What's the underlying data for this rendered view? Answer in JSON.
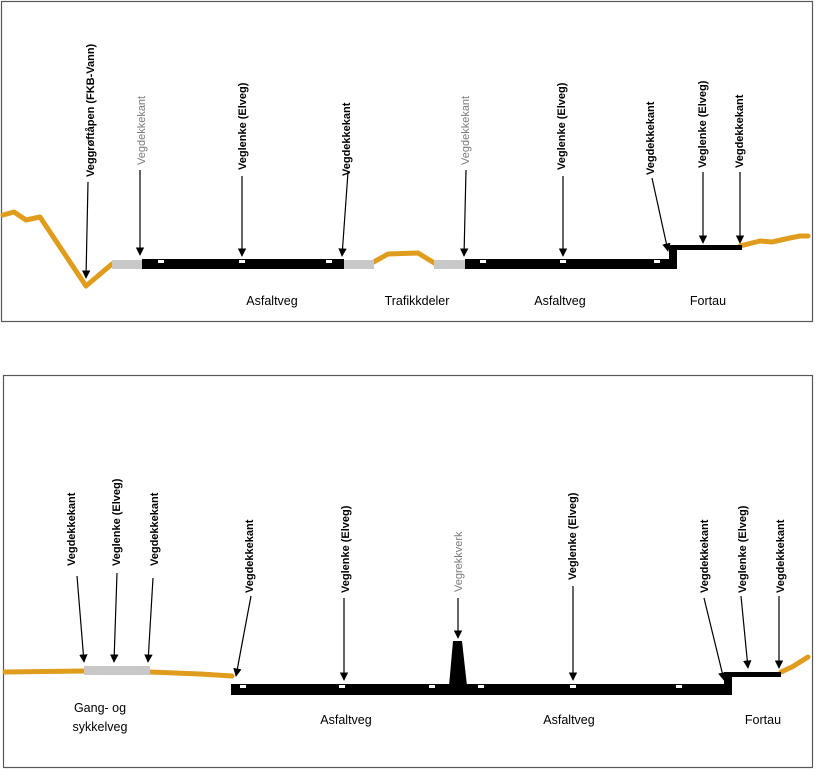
{
  "colors": {
    "terrain": "#E09C1C",
    "shoulder": "#C8C8C8",
    "asphalt": "#000000",
    "frame": "#595959",
    "grey_label": "#7a7a7a"
  },
  "panels": [
    {
      "callouts": [
        {
          "text": "Veggrøftåpen (FKB-Vann)",
          "style": "bold"
        },
        {
          "text": "Vegdekkekant",
          "style": "grey"
        },
        {
          "text": "Veglenke (Elveg)",
          "style": "bold"
        },
        {
          "text": "Vegdekkekant",
          "style": "bold"
        },
        {
          "text": "Vegdekkekant",
          "style": "grey"
        },
        {
          "text": "Veglenke (Elveg)",
          "style": "bold"
        },
        {
          "text": "Vegdekkekant",
          "style": "bold"
        },
        {
          "text": "Veglenke (Elveg)",
          "style": "bold"
        },
        {
          "text": "Vegdekkekant",
          "style": "bold"
        }
      ],
      "sections": [
        {
          "lines": [
            "Asfaltveg"
          ]
        },
        {
          "lines": [
            "Trafikkdeler"
          ]
        },
        {
          "lines": [
            "Asfaltveg"
          ]
        },
        {
          "lines": [
            "Fortau"
          ]
        }
      ]
    },
    {
      "callouts": [
        {
          "text": "Vegdekkekant",
          "style": "bold"
        },
        {
          "text": "Veglenke (Elveg)",
          "style": "bold"
        },
        {
          "text": "Vegdekkekant",
          "style": "bold"
        },
        {
          "text": "Vegdekkekant",
          "style": "bold"
        },
        {
          "text": "Veglenke (Elveg)",
          "style": "bold"
        },
        {
          "text": "Vegrekkverk",
          "style": "grey"
        },
        {
          "text": "Veglenke (Elveg)",
          "style": "bold"
        },
        {
          "text": "Vegdekkekant",
          "style": "bold"
        },
        {
          "text": "Veglenke (Elveg)",
          "style": "bold"
        },
        {
          "text": "Vegdekkekant",
          "style": "bold"
        }
      ],
      "sections": [
        {
          "lines": [
            "Gang- og",
            "sykkelveg"
          ]
        },
        {
          "lines": [
            "Asfaltveg"
          ]
        },
        {
          "lines": [
            "Asfaltveg"
          ]
        },
        {
          "lines": [
            "Fortau"
          ]
        }
      ]
    }
  ]
}
